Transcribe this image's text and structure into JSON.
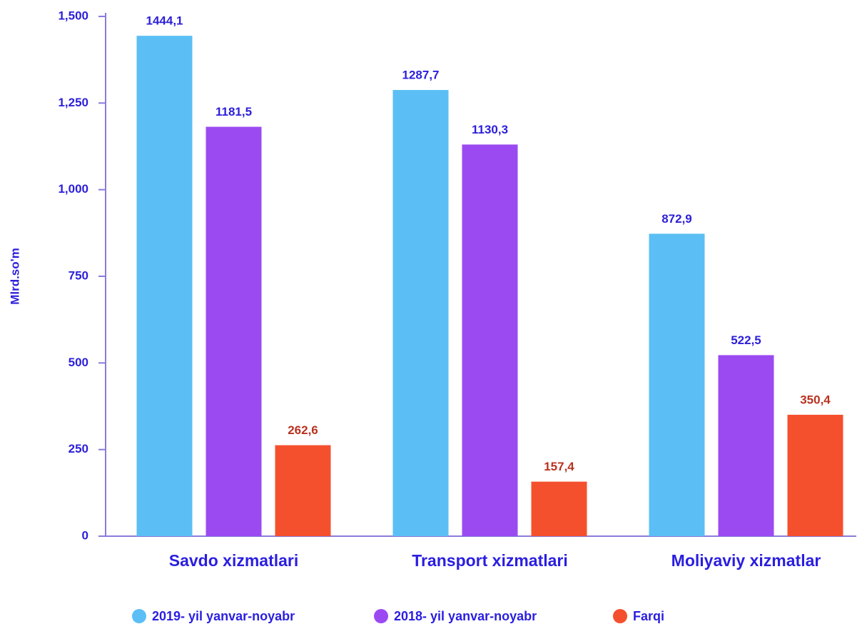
{
  "chart_data": {
    "type": "bar",
    "y_label": "Mlrd.so'm",
    "categories": [
      "Savdo xizmatlari",
      "Transport xizmatlari",
      "Moliyaviy xizmatlar"
    ],
    "series": [
      {
        "name": "2019- yil yanvar-noyabr",
        "color": "#5bbff5",
        "label_color": "#2c1fd9",
        "values": [
          1444.1,
          1287.7,
          872.9
        ],
        "value_labels": [
          "1444,1",
          "1287,7",
          "872,9"
        ]
      },
      {
        "name": "2018- yil yanvar-noyabr",
        "color": "#9b4af2",
        "label_color": "#2c1fd9",
        "values": [
          1181.5,
          1130.3,
          522.5
        ],
        "value_labels": [
          "1181,5",
          "1130,3",
          "522,5"
        ]
      },
      {
        "name": "Farqi",
        "color": "#f5502e",
        "label_color": "#b83220",
        "values": [
          262.6,
          157.4,
          350.4
        ],
        "value_labels": [
          "262,6",
          "157,4",
          "350,4"
        ]
      }
    ],
    "ylim": [
      0,
      1500
    ],
    "yticks": [
      0,
      250,
      500,
      750,
      {
        "value": 1000,
        "label": "1,000"
      },
      {
        "value": 1250,
        "label": "1,250"
      },
      {
        "value": 1500,
        "label": "1,500"
      }
    ],
    "legend": "bottom"
  }
}
